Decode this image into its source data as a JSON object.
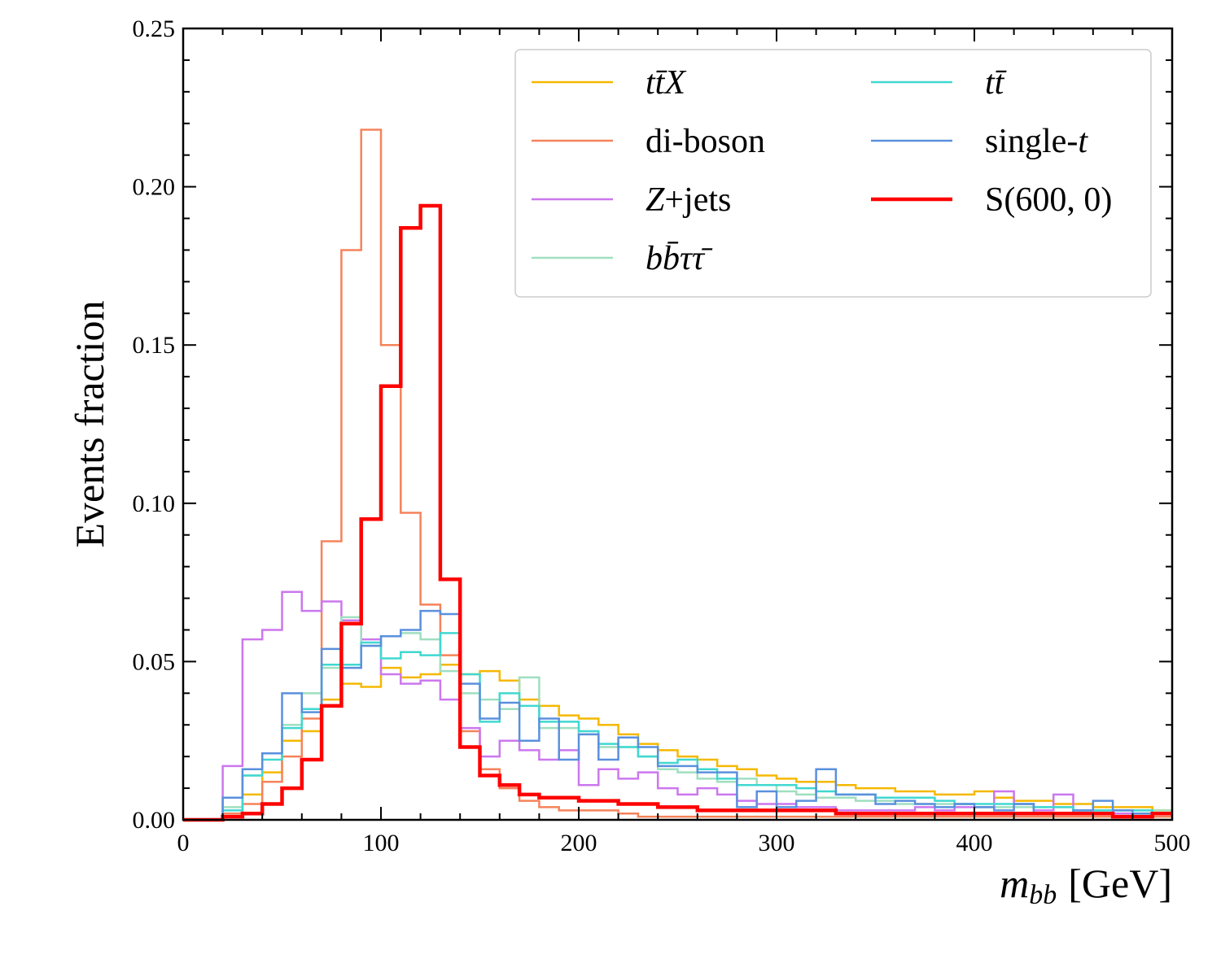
{
  "chart_data": {
    "type": "histogram-step",
    "xlabel": "m_bb [GeV]",
    "xlabel_main": "m",
    "xlabel_sub": "bb",
    "xlabel_unit": "[GeV]",
    "ylabel": "Events fraction",
    "xlim": [
      0,
      500
    ],
    "ylim": [
      0,
      0.25
    ],
    "xticks": [
      0,
      100,
      200,
      300,
      400,
      500
    ],
    "xtick_labels": [
      "0",
      "100",
      "200",
      "300",
      "400",
      "500"
    ],
    "yticks": [
      0,
      0.05,
      0.1,
      0.15,
      0.2,
      0.25
    ],
    "ytick_labels": [
      "0.00",
      "0.05",
      "0.10",
      "0.15",
      "0.20",
      "0.25"
    ],
    "legend_position": "top-right",
    "bin_edges": [
      0,
      10,
      20,
      30,
      40,
      50,
      60,
      70,
      80,
      90,
      100,
      110,
      120,
      130,
      140,
      150,
      160,
      170,
      180,
      190,
      200,
      210,
      220,
      230,
      240,
      250,
      260,
      270,
      280,
      290,
      300,
      310,
      320,
      330,
      340,
      350,
      360,
      370,
      380,
      390,
      400,
      410,
      420,
      430,
      440,
      450,
      460,
      470,
      480,
      490,
      500
    ],
    "series": [
      {
        "name": "ttX",
        "legend_parts": [
          {
            "t": "t",
            "i": true
          },
          {
            "t": "t̄",
            "i": true
          },
          {
            "t": "X",
            "i": true
          }
        ],
        "color": "#f5b800",
        "width": 2.5,
        "values": [
          0,
          0,
          0.002,
          0.008,
          0.015,
          0.025,
          0.028,
          0.038,
          0.043,
          0.042,
          0.048,
          0.045,
          0.046,
          0.049,
          0.046,
          0.047,
          0.044,
          0.038,
          0.036,
          0.033,
          0.032,
          0.03,
          0.027,
          0.024,
          0.022,
          0.02,
          0.019,
          0.017,
          0.016,
          0.014,
          0.013,
          0.012,
          0.012,
          0.011,
          0.01,
          0.01,
          0.009,
          0.009,
          0.008,
          0.008,
          0.009,
          0.007,
          0.006,
          0.006,
          0.005,
          0.005,
          0.004,
          0.004,
          0.004,
          0.003
        ]
      },
      {
        "name": "di-boson",
        "legend_parts": [
          {
            "t": "di-boson",
            "i": false
          }
        ],
        "color": "#f5835a",
        "width": 2.5,
        "values": [
          0,
          0,
          0.002,
          0.005,
          0.012,
          0.02,
          0.032,
          0.088,
          0.18,
          0.218,
          0.15,
          0.097,
          0.068,
          0.052,
          0.028,
          0.016,
          0.01,
          0.006,
          0.004,
          0.003,
          0.003,
          0.003,
          0.002,
          0.001,
          0.001,
          0.001,
          0.001,
          0.001,
          0.001,
          0.001,
          0.001,
          0.001,
          0.001,
          0.001,
          0.001,
          0.001,
          0.001,
          0.001,
          0.001,
          0.001,
          0.001,
          0.001,
          0.001,
          0.001,
          0.001,
          0.001,
          0.001,
          0.001,
          0.001,
          0.001
        ]
      },
      {
        "name": "Z+jets",
        "legend_parts": [
          {
            "t": "Z",
            "i": true
          },
          {
            "t": "+jets",
            "i": false
          }
        ],
        "color": "#cc77ee",
        "width": 2.5,
        "values": [
          0,
          0,
          0.017,
          0.057,
          0.06,
          0.072,
          0.066,
          0.069,
          0.063,
          0.057,
          0.046,
          0.043,
          0.044,
          0.038,
          0.029,
          0.02,
          0.025,
          0.022,
          0.019,
          0.022,
          0.011,
          0.016,
          0.013,
          0.015,
          0.01,
          0.008,
          0.01,
          0.008,
          0.006,
          0.005,
          0.005,
          0.004,
          0.004,
          0.003,
          0.003,
          0.003,
          0.003,
          0.004,
          0.003,
          0.004,
          0.004,
          0.009,
          0.005,
          0.003,
          0.008,
          0.003,
          0.003,
          0.002,
          0.002,
          0.002
        ]
      },
      {
        "name": "bbtautau",
        "legend_parts": [
          {
            "t": "b",
            "i": true
          },
          {
            "t": "b̄",
            "i": true
          },
          {
            "t": "τ",
            "i": true
          },
          {
            "t": "τ̄",
            "i": true
          }
        ],
        "color": "#9fdfc0",
        "width": 2.5,
        "values": [
          0,
          0,
          0.004,
          0.014,
          0.021,
          0.03,
          0.04,
          0.048,
          0.064,
          0.055,
          0.058,
          0.059,
          0.057,
          0.047,
          0.04,
          0.038,
          0.035,
          0.045,
          0.029,
          0.029,
          0.027,
          0.023,
          0.023,
          0.02,
          0.016,
          0.015,
          0.013,
          0.012,
          0.013,
          0.011,
          0.009,
          0.008,
          0.007,
          0.007,
          0.006,
          0.006,
          0.005,
          0.005,
          0.005,
          0.005,
          0.004,
          0.004,
          0.004,
          0.004,
          0.004,
          0.003,
          0.003,
          0.003,
          0.003,
          0.003
        ]
      },
      {
        "name": "tt",
        "legend_parts": [
          {
            "t": "t",
            "i": true
          },
          {
            "t": "t̄",
            "i": true
          }
        ],
        "color": "#40d8d0",
        "width": 2.5,
        "values": [
          0,
          0,
          0.003,
          0.014,
          0.019,
          0.029,
          0.035,
          0.049,
          0.049,
          0.056,
          0.051,
          0.053,
          0.052,
          0.059,
          0.046,
          0.031,
          0.04,
          0.036,
          0.031,
          0.031,
          0.028,
          0.024,
          0.023,
          0.02,
          0.018,
          0.019,
          0.016,
          0.013,
          0.011,
          0.011,
          0.011,
          0.01,
          0.009,
          0.008,
          0.008,
          0.007,
          0.007,
          0.007,
          0.006,
          0.005,
          0.005,
          0.005,
          0.005,
          0.004,
          0.004,
          0.003,
          0.003,
          0.003,
          0.003,
          0.002
        ]
      },
      {
        "name": "single-t",
        "legend_parts": [
          {
            "t": "single-",
            "i": false
          },
          {
            "t": "t",
            "i": true
          }
        ],
        "color": "#5a90dd",
        "width": 2.5,
        "values": [
          0,
          0,
          0.007,
          0.016,
          0.021,
          0.04,
          0.034,
          0.054,
          0.048,
          0.055,
          0.058,
          0.06,
          0.066,
          0.065,
          0.043,
          0.032,
          0.037,
          0.025,
          0.032,
          0.019,
          0.027,
          0.019,
          0.026,
          0.023,
          0.017,
          0.017,
          0.015,
          0.015,
          0.004,
          0.009,
          0.004,
          0.006,
          0.016,
          0.008,
          0.008,
          0.005,
          0.006,
          0.005,
          0.004,
          0.005,
          0.004,
          0.003,
          0.005,
          0.002,
          0.002,
          0.003,
          0.006,
          0.003,
          0.002,
          0.002
        ]
      },
      {
        "name": "S(600, 0)",
        "legend_parts": [
          {
            "t": "S(600, 0)",
            "i": false
          }
        ],
        "color": "#ff0000",
        "width": 4.5,
        "values": [
          0,
          0,
          0.001,
          0.002,
          0.005,
          0.01,
          0.019,
          0.036,
          0.062,
          0.095,
          0.137,
          0.187,
          0.194,
          0.076,
          0.023,
          0.014,
          0.011,
          0.008,
          0.007,
          0.007,
          0.006,
          0.006,
          0.005,
          0.005,
          0.004,
          0.004,
          0.003,
          0.003,
          0.003,
          0.003,
          0.003,
          0.003,
          0.003,
          0.002,
          0.002,
          0.002,
          0.002,
          0.002,
          0.002,
          0.002,
          0.002,
          0.002,
          0.002,
          0.002,
          0.002,
          0.002,
          0.002,
          0.001,
          0.001,
          0.002
        ]
      }
    ]
  }
}
